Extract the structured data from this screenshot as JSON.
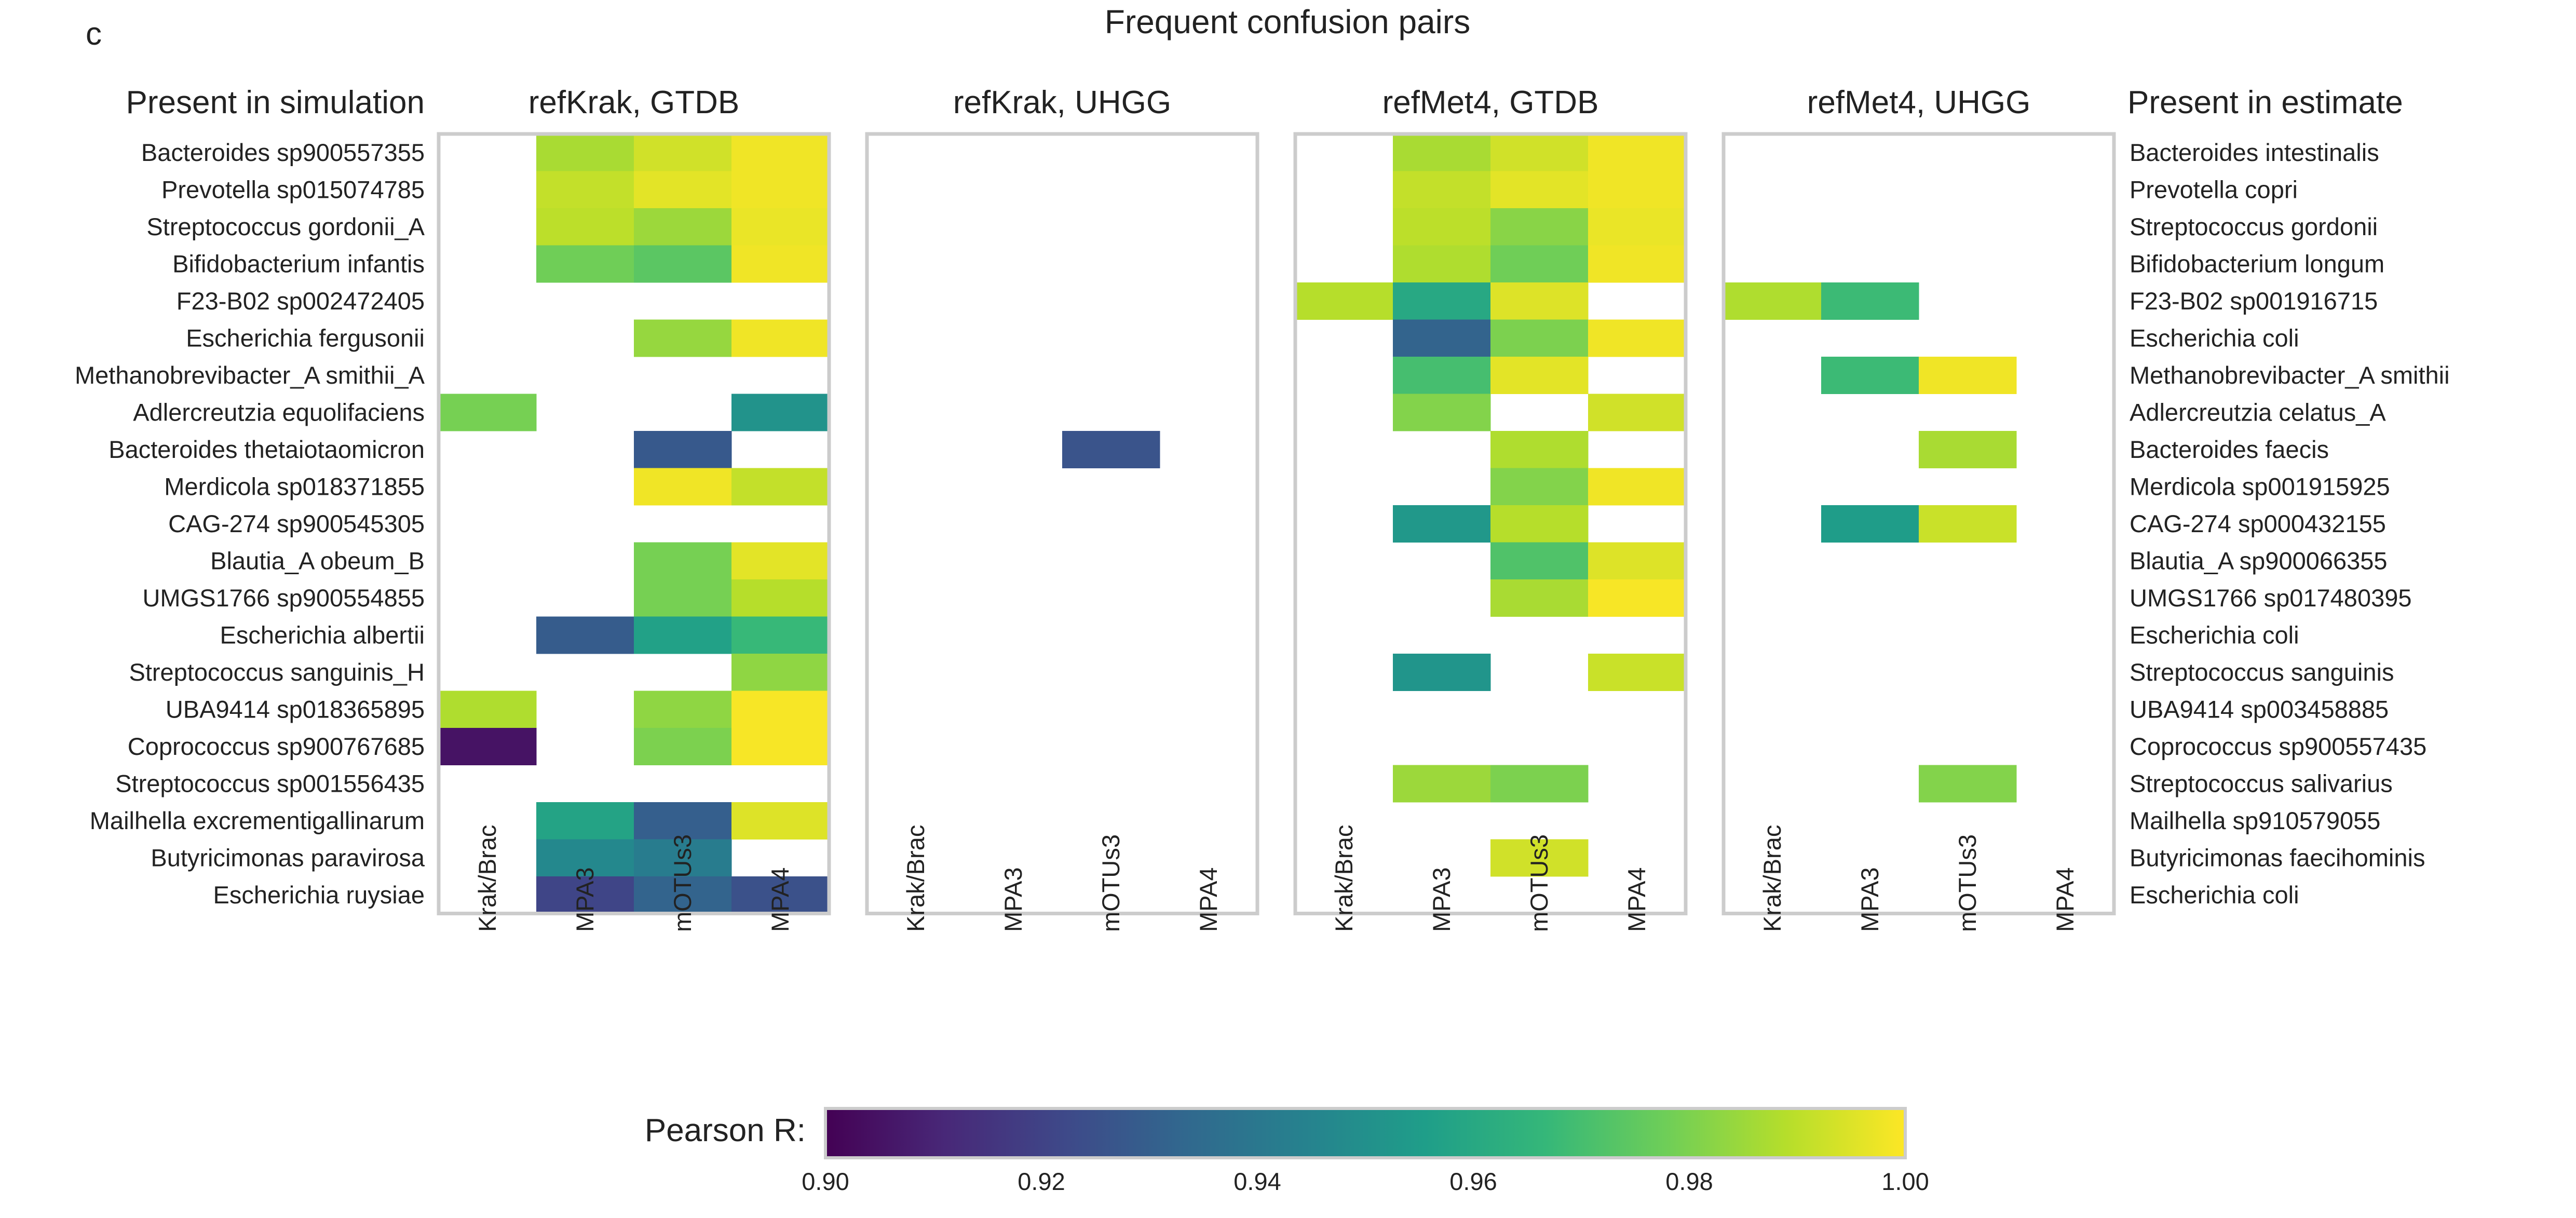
{
  "panel_letter": "c",
  "title": "Frequent confusion pairs",
  "left_header": "Present in simulation",
  "right_header": "Present in estimate",
  "colors": {
    "frame": "#cccccc",
    "viridis_stops": [
      "#440154",
      "#482878",
      "#3e4989",
      "#31688e",
      "#26828e",
      "#1f9e89",
      "#35b779",
      "#6ece58",
      "#b5de2b",
      "#fde725"
    ]
  },
  "chart_data": {
    "type": "heatmap",
    "title": "Frequent confusion pairs",
    "x_categories": [
      "Krak/Brac",
      "MPA3",
      "mOTUs3",
      "MPA4"
    ],
    "rows_simulation": [
      "Bacteroides sp900557355",
      "Prevotella sp015074785",
      "Streptococcus gordonii_A",
      "Bifidobacterium infantis",
      "F23-B02 sp002472405",
      "Escherichia fergusonii",
      "Methanobrevibacter_A smithii_A",
      "Adlercreutzia equolifaciens",
      "Bacteroides thetaiotaomicron",
      "Merdicola sp018371855",
      "CAG-274 sp900545305",
      "Blautia_A obeum_B",
      "UMGS1766 sp900554855",
      "Escherichia albertii",
      "Streptococcus sanguinis_H",
      "UBA9414 sp018365895",
      "Coprococcus sp900767685",
      "Streptococcus sp001556435",
      "Mailhella excrementigallinarum",
      "Butyricimonas paravirosa",
      "Escherichia ruysiae"
    ],
    "rows_estimate": [
      "Bacteroides intestinalis",
      "Prevotella copri",
      "Streptococcus gordonii",
      "Bifidobacterium longum",
      "F23-B02 sp001916715",
      "Escherichia coli",
      "Methanobrevibacter_A smithii",
      "Adlercreutzia celatus_A",
      "Bacteroides faecis",
      "Merdicola sp001915925",
      "CAG-274 sp000432155",
      "Blautia_A sp900066355",
      "UMGS1766 sp017480395",
      "Escherichia coli",
      "Streptococcus sanguinis",
      "UBA9414 sp003458885",
      "Coprococcus sp900557435",
      "Streptococcus salivarius",
      "Mailhella sp910579055",
      "Butyricimonas faecihominis",
      "Escherichia coli"
    ],
    "panels": [
      {
        "title": "refKrak, GTDB",
        "values": [
          [
            null,
            0.987,
            0.993,
            0.998
          ],
          [
            null,
            0.991,
            0.996,
            0.998
          ],
          [
            null,
            0.99,
            0.985,
            0.997
          ],
          [
            null,
            0.978,
            0.974,
            0.998
          ],
          [
            null,
            null,
            null,
            null
          ],
          [
            null,
            null,
            0.984,
            0.998
          ],
          [
            null,
            null,
            null,
            null
          ],
          [
            0.979,
            null,
            null,
            0.951
          ],
          [
            null,
            null,
            0.928,
            null
          ],
          [
            null,
            null,
            0.998,
            0.991
          ],
          [
            null,
            null,
            null,
            null
          ],
          [
            null,
            null,
            0.979,
            0.996
          ],
          [
            null,
            null,
            0.979,
            0.989
          ],
          [
            null,
            0.929,
            0.957,
            0.967
          ],
          [
            null,
            null,
            null,
            0.983
          ],
          [
            0.988,
            null,
            0.983,
            0.999
          ],
          [
            0.905,
            null,
            0.98,
            0.999
          ],
          [
            null,
            null,
            null,
            null
          ],
          [
            null,
            0.958,
            0.93,
            0.995
          ],
          [
            null,
            0.947,
            0.942,
            null
          ],
          [
            null,
            0.921,
            0.932,
            0.925
          ]
        ]
      },
      {
        "title": "refKrak, UHGG",
        "values": [
          [
            null,
            null,
            null,
            null
          ],
          [
            null,
            null,
            null,
            null
          ],
          [
            null,
            null,
            null,
            null
          ],
          [
            null,
            null,
            null,
            null
          ],
          [
            null,
            null,
            null,
            null
          ],
          [
            null,
            null,
            null,
            null
          ],
          [
            null,
            null,
            null,
            null
          ],
          [
            null,
            null,
            null,
            null
          ],
          [
            null,
            null,
            0.926,
            null
          ],
          [
            null,
            null,
            null,
            null
          ],
          [
            null,
            null,
            null,
            null
          ],
          [
            null,
            null,
            null,
            null
          ],
          [
            null,
            null,
            null,
            null
          ],
          [
            null,
            null,
            null,
            null
          ],
          [
            null,
            null,
            null,
            null
          ],
          [
            null,
            null,
            null,
            null
          ],
          [
            null,
            null,
            null,
            null
          ],
          [
            null,
            null,
            null,
            null
          ],
          [
            null,
            null,
            null,
            null
          ],
          [
            null,
            null,
            null,
            null
          ],
          [
            null,
            null,
            null,
            null
          ]
        ]
      },
      {
        "title": "refMet4, GTDB",
        "values": [
          [
            null,
            0.987,
            0.993,
            0.998
          ],
          [
            null,
            0.991,
            0.996,
            0.998
          ],
          [
            null,
            0.99,
            0.982,
            0.997
          ],
          [
            null,
            0.988,
            0.978,
            0.998
          ],
          [
            0.989,
            0.96,
            0.995,
            null
          ],
          [
            null,
            0.932,
            0.98,
            0.998
          ],
          [
            null,
            0.97,
            0.996,
            null
          ],
          [
            null,
            0.981,
            null,
            0.993
          ],
          [
            null,
            null,
            0.988,
            null
          ],
          [
            null,
            null,
            0.981,
            0.998
          ],
          [
            null,
            0.953,
            0.989,
            null
          ],
          [
            null,
            null,
            0.972,
            0.995
          ],
          [
            null,
            null,
            0.987,
            0.999
          ],
          [
            null,
            null,
            null,
            null
          ],
          [
            null,
            0.952,
            null,
            0.992
          ],
          [
            null,
            null,
            null,
            null
          ],
          [
            null,
            null,
            null,
            null
          ],
          [
            null,
            0.985,
            0.98,
            null
          ],
          [
            null,
            null,
            null,
            null
          ],
          [
            null,
            null,
            0.993,
            null
          ],
          [
            null,
            null,
            null,
            null
          ]
        ]
      },
      {
        "title": "refMet4, UHGG",
        "values": [
          [
            null,
            null,
            null,
            null
          ],
          [
            null,
            null,
            null,
            null
          ],
          [
            null,
            null,
            null,
            null
          ],
          [
            null,
            null,
            null,
            null
          ],
          [
            0.988,
            0.968,
            null,
            null
          ],
          [
            null,
            null,
            null,
            null
          ],
          [
            null,
            0.968,
            0.998,
            null
          ],
          [
            null,
            null,
            null,
            null
          ],
          [
            null,
            null,
            0.987,
            null
          ],
          [
            null,
            null,
            null,
            null
          ],
          [
            null,
            0.955,
            0.992,
            null
          ],
          [
            null,
            null,
            null,
            null
          ],
          [
            null,
            null,
            null,
            null
          ],
          [
            null,
            null,
            null,
            null
          ],
          [
            null,
            null,
            null,
            null
          ],
          [
            null,
            null,
            null,
            null
          ],
          [
            null,
            null,
            null,
            null
          ],
          [
            null,
            null,
            0.981,
            null
          ],
          [
            null,
            null,
            null,
            null
          ],
          [
            null,
            null,
            null,
            null
          ],
          [
            null,
            null,
            null,
            null
          ]
        ]
      }
    ],
    "colorbar": {
      "label": "Pearson R:",
      "cmap": "viridis",
      "vmin": 0.9,
      "vmax": 1.0,
      "ticks": [
        "0.90",
        "0.92",
        "0.94",
        "0.96",
        "0.98",
        "1.00"
      ]
    }
  }
}
